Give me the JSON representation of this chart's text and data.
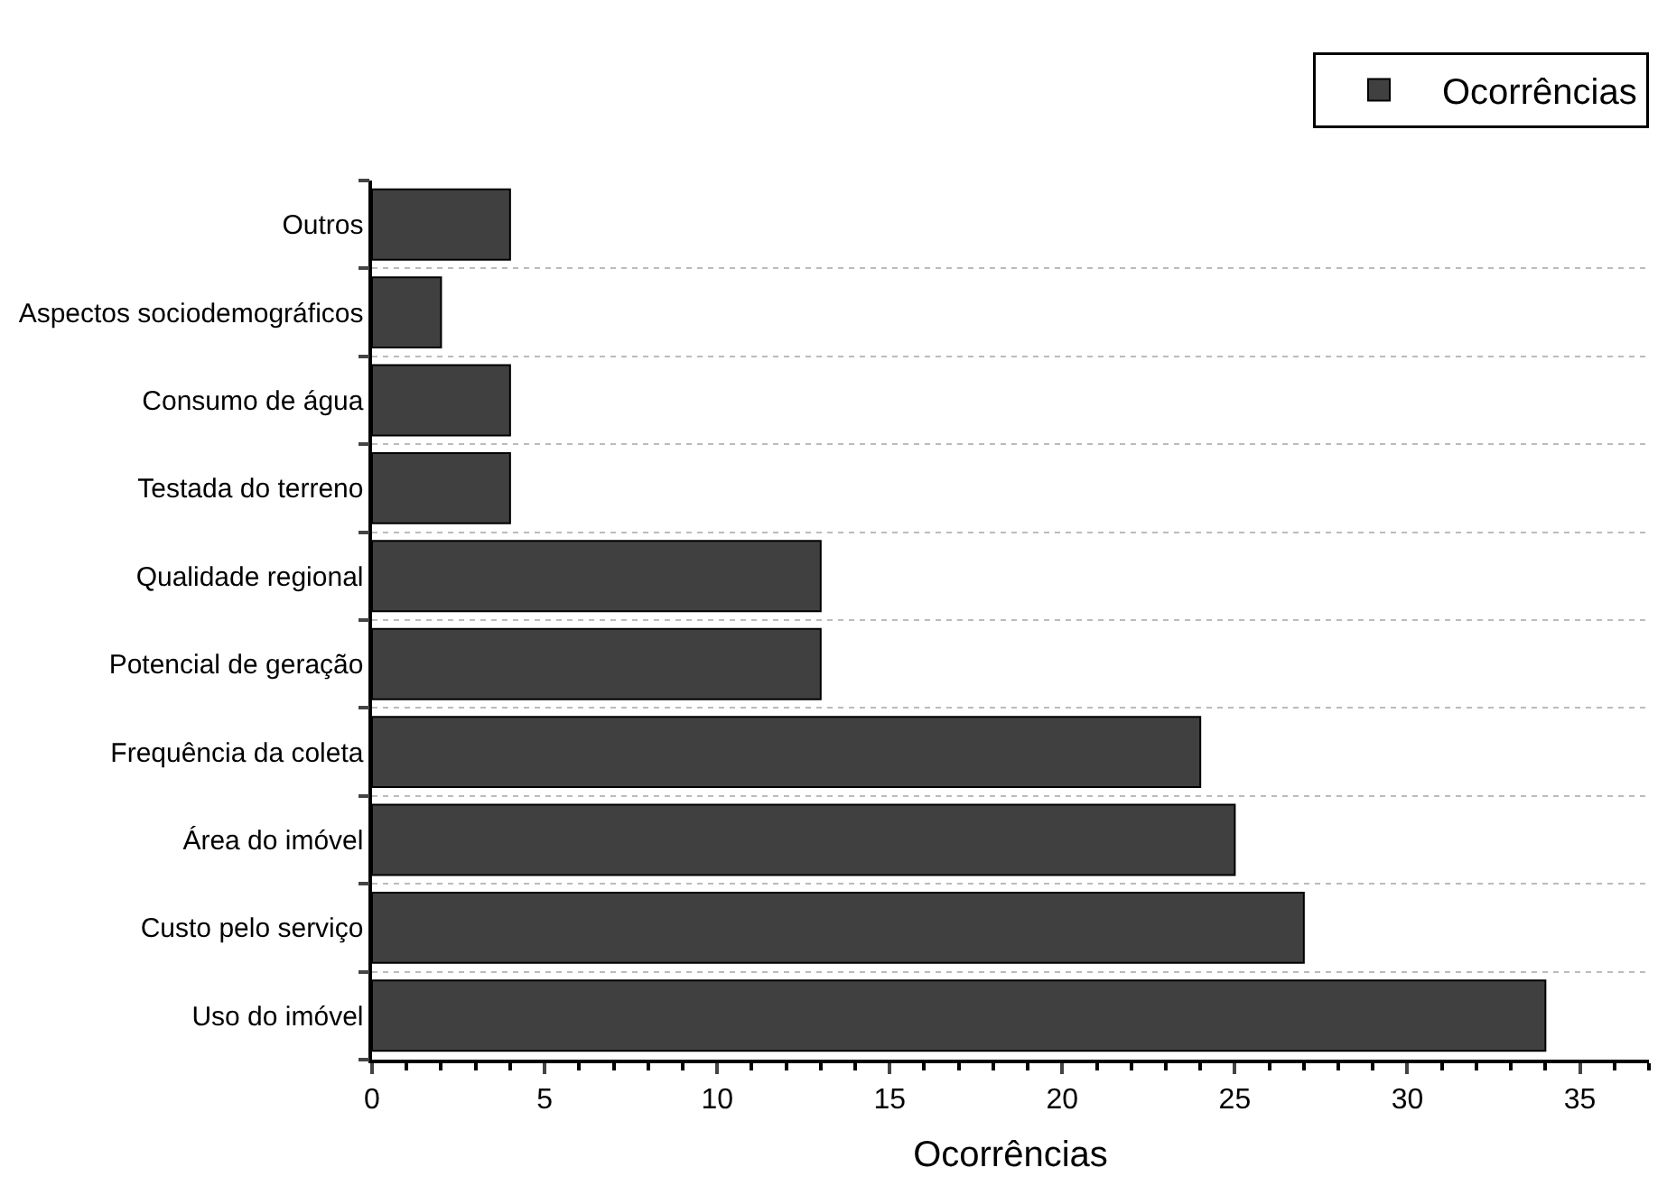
{
  "chart_data": {
    "type": "bar",
    "orientation": "horizontal",
    "xlabel": "Ocorrências",
    "categories": [
      "Outros",
      "Aspectos sociodemográficos",
      "Consumo de água",
      "Testada do terreno",
      "Qualidade regional",
      "Potencial de geração",
      "Frequência da coleta",
      "Área do imóvel",
      "Custo pelo serviço",
      "Uso do imóvel"
    ],
    "series": [
      {
        "name": "Ocorrências",
        "color": "#404040",
        "values": [
          4,
          2,
          4,
          4,
          13,
          13,
          24,
          25,
          27,
          34
        ]
      }
    ],
    "xlim": [
      0,
      37
    ],
    "xticks": [
      0,
      5,
      10,
      15,
      20,
      25,
      30,
      35
    ],
    "grid": "y",
    "legend": "top right"
  }
}
